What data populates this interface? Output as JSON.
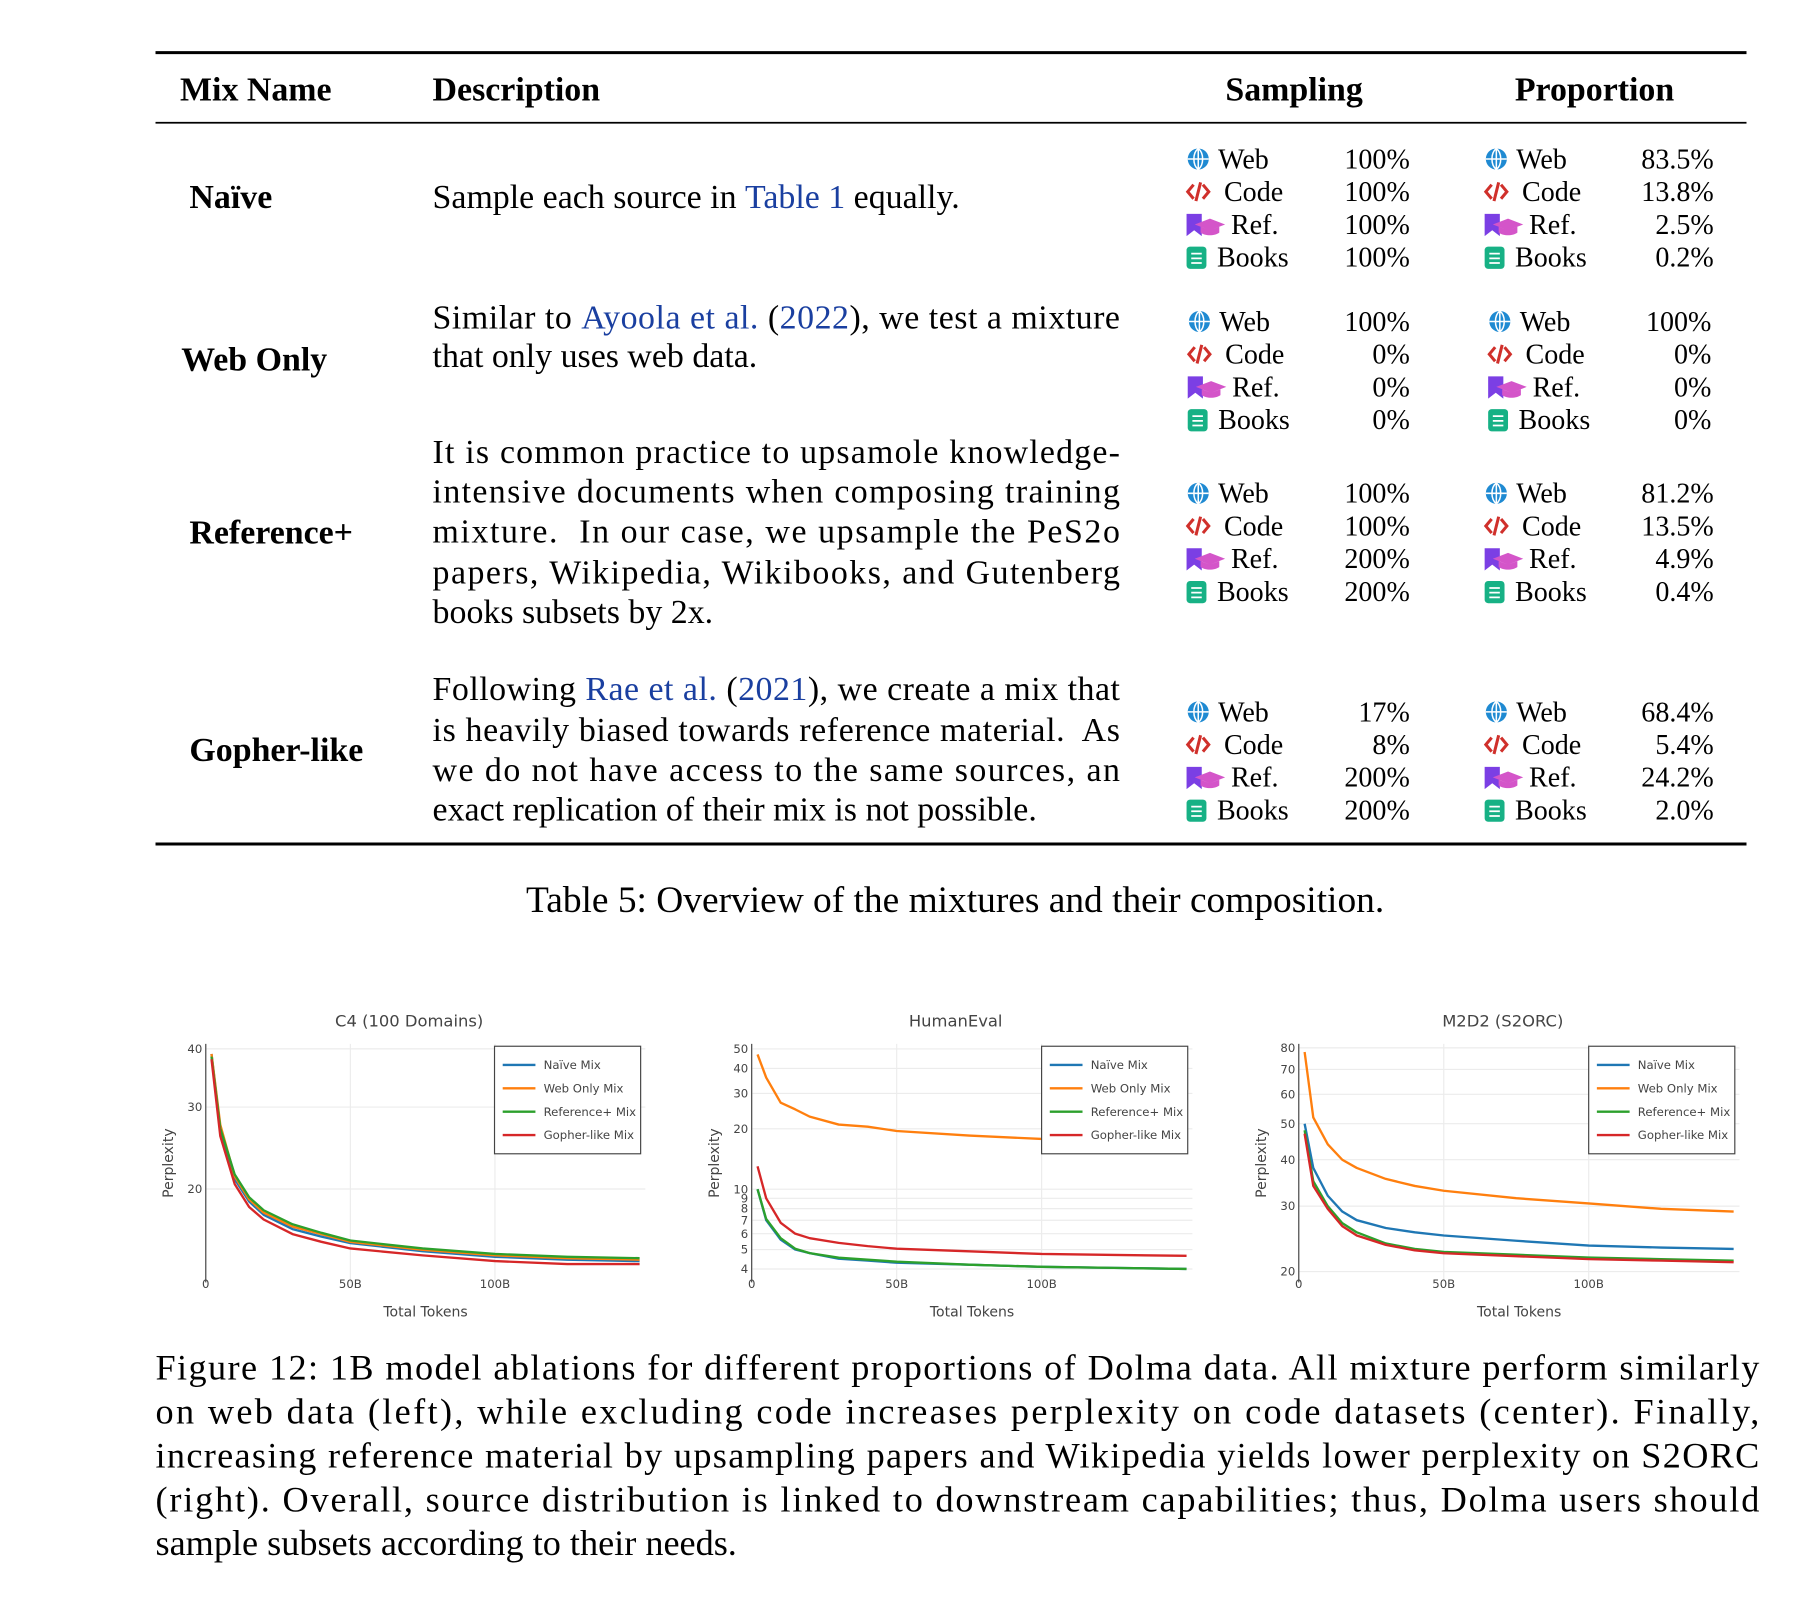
{
  "table": {
    "headers": [
      "Mix Name",
      "Description",
      "Sampling",
      "Proportion"
    ],
    "rows": [
      {
        "name": "Naïve",
        "description": [
          [
            {
              "text": "Sample each source in "
            },
            {
              "text": "Table 1",
              "link": true
            },
            {
              "text": " equally."
            }
          ]
        ],
        "sampling": [
          {
            "source": "Web",
            "value": "100%"
          },
          {
            "source": "Code",
            "value": "100%"
          },
          {
            "source": "Ref.",
            "value": "100%"
          },
          {
            "source": "Books",
            "value": "100%"
          }
        ],
        "proportion": [
          {
            "source": "Web",
            "value": "83.5%"
          },
          {
            "source": "Code",
            "value": "13.8%"
          },
          {
            "source": "Ref.",
            "value": "2.5%"
          },
          {
            "source": "Books",
            "value": "0.2%"
          }
        ]
      },
      {
        "name": "Web Only",
        "description": [
          [
            {
              "text": "Similar to "
            },
            {
              "text": "Ayoola et al.",
              "link": true
            },
            {
              "text": " ("
            },
            {
              "text": "2022",
              "link": true
            },
            {
              "text": "), we test a mixture"
            }
          ],
          [
            {
              "text": "that only uses web data."
            }
          ]
        ],
        "sampling": [
          {
            "source": "Web",
            "value": "100%"
          },
          {
            "source": "Code",
            "value": "0%"
          },
          {
            "source": "Ref.",
            "value": "0%"
          },
          {
            "source": "Books",
            "value": "0%"
          }
        ],
        "proportion": [
          {
            "source": "Web",
            "value": "100%"
          },
          {
            "source": "Code",
            "value": "0%"
          },
          {
            "source": "Ref.",
            "value": "0%"
          },
          {
            "source": "Books",
            "value": "0%"
          }
        ]
      },
      {
        "name": "Reference+",
        "description": [
          [
            {
              "text": "It is common practice to upsamole knowledge-"
            }
          ],
          [
            {
              "text": "intensive documents when composing training"
            }
          ],
          [
            {
              "text": "mixture.  In our case, we upsample the PeS2o"
            }
          ],
          [
            {
              "text": "papers, Wikipedia, Wikibooks, and Gutenberg"
            }
          ],
          [
            {
              "text": "books subsets by 2x."
            }
          ]
        ],
        "sampling": [
          {
            "source": "Web",
            "value": "100%"
          },
          {
            "source": "Code",
            "value": "100%"
          },
          {
            "source": "Ref.",
            "value": "200%"
          },
          {
            "source": "Books",
            "value": "200%"
          }
        ],
        "proportion": [
          {
            "source": "Web",
            "value": "81.2%"
          },
          {
            "source": "Code",
            "value": "13.5%"
          },
          {
            "source": "Ref.",
            "value": "4.9%"
          },
          {
            "source": "Books",
            "value": "0.4%"
          }
        ]
      },
      {
        "name": "Gopher-like",
        "description": [
          [
            {
              "text": "Following "
            },
            {
              "text": "Rae et al.",
              "link": true
            },
            {
              "text": " ("
            },
            {
              "text": "2021",
              "link": true
            },
            {
              "text": "), we create a mix that"
            }
          ],
          [
            {
              "text": "is heavily biased towards reference material.  As"
            }
          ],
          [
            {
              "text": "we do not have access to the same sources, an"
            }
          ],
          [
            {
              "text": "exact replication of their mix is not possible."
            }
          ]
        ],
        "sampling": [
          {
            "source": "Web",
            "value": "17%"
          },
          {
            "source": "Code",
            "value": "8%"
          },
          {
            "source": "Ref.",
            "value": "200%"
          },
          {
            "source": "Books",
            "value": "200%"
          }
        ],
        "proportion": [
          {
            "source": "Web",
            "value": "68.4%"
          },
          {
            "source": "Code",
            "value": "5.4%"
          },
          {
            "source": "Ref.",
            "value": "24.2%"
          },
          {
            "source": "Books",
            "value": "2.0%"
          }
        ]
      }
    ],
    "caption": "Table 5: Overview of the mixtures and their composition."
  },
  "chart_data": [
    {
      "type": "line",
      "title": "C4 (100 Domains)",
      "x_label": "Total Tokens",
      "y_label": "Perplexity",
      "log_y": true,
      "grid": true,
      "legend": "top-right",
      "x": [
        2,
        5,
        10,
        15,
        20,
        30,
        40,
        50,
        75,
        100,
        125,
        150
      ],
      "xlim": [
        0,
        152
      ],
      "xticks": [
        0,
        {
          "value": 50,
          "label": "50B"
        },
        {
          "value": 100,
          "label": "100B"
        }
      ],
      "ylim": [
        12.6,
        41
      ],
      "yticks": [
        20,
        30,
        40
      ],
      "series": [
        {
          "name": "Naïve Mix",
          "color": "#1f77b4",
          "values": [
            39,
            27,
            21,
            18.8,
            17.6,
            16.4,
            15.8,
            15.3,
            14.7,
            14.3,
            14.1,
            14.0
          ]
        },
        {
          "name": "Web Only Mix",
          "color": "#ff7f0e",
          "values": [
            39,
            27.5,
            21.3,
            19,
            17.8,
            16.6,
            16,
            15.4,
            14.8,
            14.4,
            14.2,
            14.1
          ]
        },
        {
          "name": "Reference+ Mix",
          "color": "#2ca02c",
          "values": [
            38.5,
            27,
            21.5,
            19.2,
            18,
            16.8,
            16.1,
            15.5,
            14.9,
            14.5,
            14.3,
            14.2
          ]
        },
        {
          "name": "Gopher-like Mix",
          "color": "#d62728",
          "values": [
            38,
            26,
            20.5,
            18.3,
            17.2,
            16,
            15.4,
            14.9,
            14.4,
            14.0,
            13.8,
            13.8
          ]
        }
      ]
    },
    {
      "type": "line",
      "title": "HumanEval",
      "x_label": "Total Tokens",
      "y_label": "Perplexity",
      "log_y": true,
      "grid": true,
      "legend": "top-right",
      "x": [
        2,
        5,
        10,
        15,
        20,
        30,
        40,
        50,
        75,
        100,
        125,
        150
      ],
      "xlim": [
        0,
        152
      ],
      "xticks": [
        0,
        {
          "value": 50,
          "label": "50B"
        },
        {
          "value": 100,
          "label": "100B"
        }
      ],
      "ylim": [
        3.43,
        53
      ],
      "yticks": [
        4,
        5,
        6,
        7,
        8,
        9,
        10,
        20,
        30,
        40,
        50
      ],
      "series": [
        {
          "name": "Naïve Mix",
          "color": "#1f77b4",
          "values": [
            10,
            7,
            5.6,
            5.0,
            4.8,
            4.5,
            4.4,
            4.3,
            4.2,
            4.1,
            4.05,
            4.0
          ]
        },
        {
          "name": "Web Only Mix",
          "color": "#ff7f0e",
          "values": [
            47,
            36,
            27,
            25,
            23,
            21,
            20.5,
            19.5,
            18.5,
            17.8,
            17.5,
            17.3
          ]
        },
        {
          "name": "Reference+ Mix",
          "color": "#2ca02c",
          "values": [
            10,
            7.1,
            5.7,
            5.05,
            4.8,
            4.55,
            4.45,
            4.35,
            4.2,
            4.1,
            4.05,
            4.0
          ]
        },
        {
          "name": "Gopher-like Mix",
          "color": "#d62728",
          "values": [
            13,
            9,
            6.8,
            6.0,
            5.7,
            5.4,
            5.2,
            5.05,
            4.9,
            4.75,
            4.7,
            4.65
          ]
        }
      ]
    },
    {
      "type": "line",
      "title": "M2D2 (S2ORC)",
      "x_label": "Total Tokens",
      "y_label": "Perplexity",
      "log_y": true,
      "grid": true,
      "legend": "top-right",
      "x": [
        2,
        5,
        10,
        15,
        20,
        30,
        40,
        50,
        75,
        100,
        125,
        150
      ],
      "xlim": [
        0,
        152
      ],
      "xticks": [
        0,
        {
          "value": 50,
          "label": "50B"
        },
        {
          "value": 100,
          "label": "100B"
        }
      ],
      "ylim": [
        18.7,
        82
      ],
      "yticks": [
        20,
        30,
        40,
        50,
        60,
        70,
        80
      ],
      "series": [
        {
          "name": "Naïve Mix",
          "color": "#1f77b4",
          "values": [
            50,
            38,
            32,
            29,
            27.5,
            26.2,
            25.5,
            25,
            24.2,
            23.5,
            23.2,
            23.0
          ]
        },
        {
          "name": "Web Only Mix",
          "color": "#ff7f0e",
          "values": [
            78,
            52,
            44,
            40,
            38,
            35.5,
            34,
            33,
            31.5,
            30.5,
            29.5,
            29
          ]
        },
        {
          "name": "Reference+ Mix",
          "color": "#2ca02c",
          "values": [
            48,
            35,
            30,
            27,
            25.5,
            23.8,
            23,
            22.6,
            22.2,
            21.8,
            21.6,
            21.4
          ]
        },
        {
          "name": "Gopher-like Mix",
          "color": "#d62728",
          "values": [
            47,
            34,
            29.5,
            26.5,
            25,
            23.6,
            22.8,
            22.4,
            22.0,
            21.6,
            21.4,
            21.2
          ]
        }
      ]
    }
  ],
  "figure_caption": [
    "Figure 12: 1B model ablations for different proportions of Dolma data. All mixture perform similarly",
    "on web data (left), while excluding code increases perplexity on code datasets (center). Finally,",
    "increasing reference material by upsampling papers and Wikipedia yields lower perplexity on S2ORC",
    "(right). Overall, source distribution is linked to downstream capabilities; thus, Dolma users should",
    "sample subsets according to their needs."
  ]
}
